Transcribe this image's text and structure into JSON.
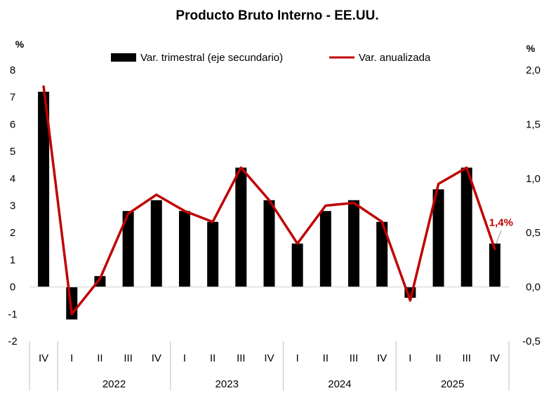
{
  "chart_data": {
    "type": "bar",
    "title": "Producto Bruto Interno - EE.UU.",
    "left_axis": {
      "unit": "%",
      "range": [
        -2,
        8
      ],
      "ticks": [
        "-2",
        "-1",
        "0",
        "1",
        "2",
        "3",
        "4",
        "5",
        "6",
        "7",
        "8"
      ]
    },
    "right_axis": {
      "unit": "%",
      "range": [
        -0.5,
        2.0
      ],
      "ticks": [
        "-0,5",
        "0,0",
        "0,5",
        "1,0",
        "1,5",
        "2,0"
      ]
    },
    "categories": [
      "IV",
      "I",
      "II",
      "III",
      "IV",
      "I",
      "II",
      "III",
      "IV",
      "I",
      "II",
      "III",
      "IV",
      "I",
      "II",
      "III",
      "IV"
    ],
    "year_groups": [
      {
        "label": "2022",
        "span": [
          1,
          4
        ]
      },
      {
        "label": "2023",
        "span": [
          5,
          8
        ]
      },
      {
        "label": "2024",
        "span": [
          9,
          12
        ]
      },
      {
        "label": "2025",
        "span": [
          13,
          16
        ]
      }
    ],
    "series": [
      {
        "name": "Var. trimestral (eje secundario)",
        "type": "bar",
        "color": "#000000",
        "axis": "right",
        "values": [
          1.8,
          -0.3,
          0.1,
          0.7,
          0.8,
          0.7,
          0.6,
          1.1,
          0.8,
          0.4,
          0.7,
          0.8,
          0.6,
          -0.1,
          0.9,
          1.1,
          0.4
        ]
      },
      {
        "name": "Var. anualizada",
        "type": "line",
        "color": "#c00000",
        "axis": "left",
        "values": [
          7.4,
          -1.0,
          0.3,
          2.7,
          3.4,
          2.8,
          2.4,
          4.4,
          3.2,
          1.6,
          3.0,
          3.1,
          2.4,
          -0.5,
          3.8,
          4.4,
          1.4
        ]
      }
    ],
    "annotation": {
      "text": "1,4%",
      "color": "#c00000",
      "index": 16
    },
    "legend": "top",
    "grid": false
  }
}
